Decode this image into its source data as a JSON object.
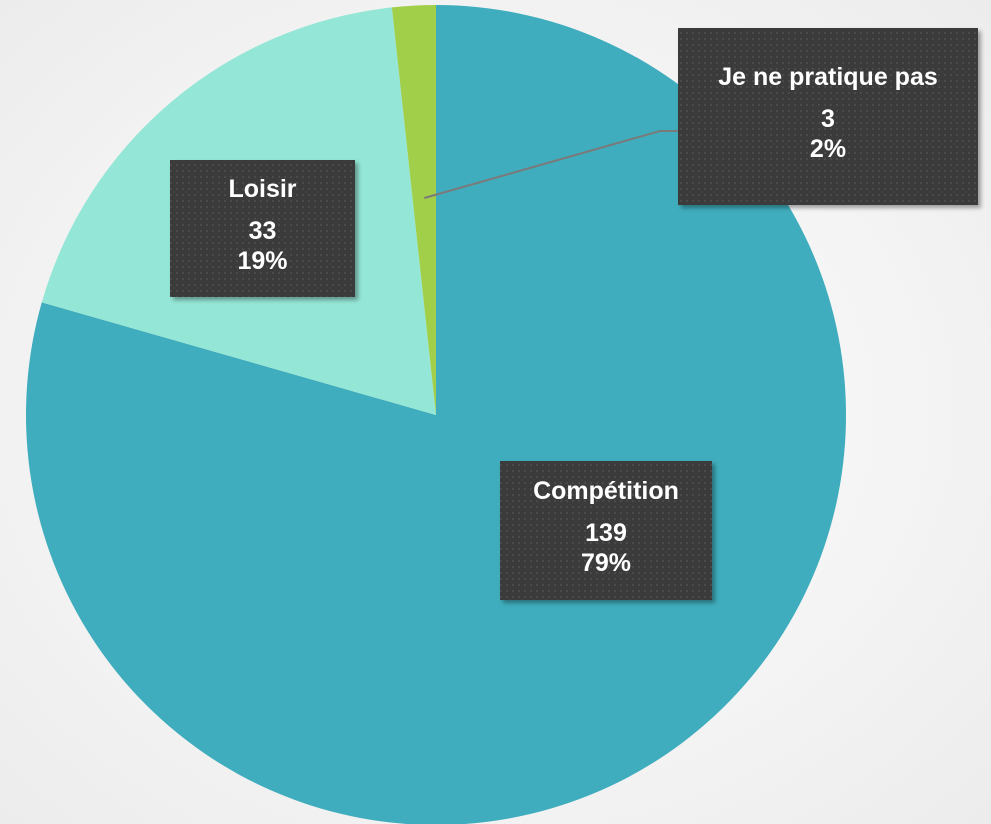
{
  "chart_data": {
    "type": "pie",
    "categories": [
      "Compétition",
      "Loisir",
      "Je ne pratique pas"
    ],
    "values": [
      139,
      33,
      3
    ],
    "percent_labels": [
      "79%",
      "19%",
      "2%"
    ],
    "colors": [
      "#3fadbd",
      "#94e6d6",
      "#a2cf4a"
    ]
  }
}
